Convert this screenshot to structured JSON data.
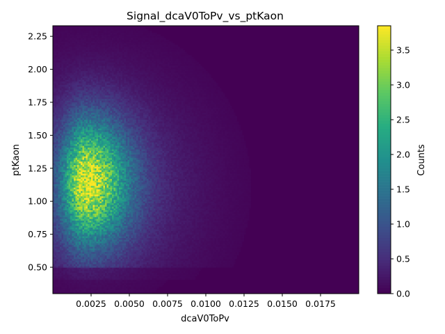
{
  "chart_data": {
    "type": "heatmap",
    "title": "Signal_dcaV0ToPv_vs_ptKaon",
    "xlabel": "dcaV0ToPv",
    "ylabel": "ptKaon",
    "colorbar_label": "Counts",
    "colormap": "viridis",
    "xlim": [
      0.0,
      0.02
    ],
    "ylim": [
      0.3,
      2.33
    ],
    "zlim": [
      0.0,
      3.85
    ],
    "x_ticks": [
      0.0025,
      0.005,
      0.0075,
      0.01,
      0.0125,
      0.015,
      0.0175
    ],
    "x_tick_labels": [
      "0.0025",
      "0.0050",
      "0.0075",
      "0.0100",
      "0.0125",
      "0.0150",
      "0.0175"
    ],
    "y_ticks": [
      0.5,
      0.75,
      1.0,
      1.25,
      1.5,
      1.75,
      2.0,
      2.25
    ],
    "y_tick_labels": [
      "0.50",
      "0.75",
      "1.00",
      "1.25",
      "1.50",
      "1.75",
      "2.00",
      "2.25"
    ],
    "colorbar_ticks": [
      0.0,
      0.5,
      1.0,
      1.5,
      2.0,
      2.5,
      3.0,
      3.5
    ],
    "colorbar_tick_labels": [
      "0.0",
      "0.5",
      "1.0",
      "1.5",
      "2.0",
      "2.5",
      "3.0",
      "3.5"
    ],
    "distribution": {
      "peak_x": 0.0022,
      "peak_y": 1.15,
      "peak_counts": 3.85,
      "x_sigma_low": 0.0011,
      "x_sigma_high": 0.0019,
      "y_sigma": 0.32,
      "low_pt_floor": 0.3,
      "low_pt_edge": 0.5
    }
  }
}
